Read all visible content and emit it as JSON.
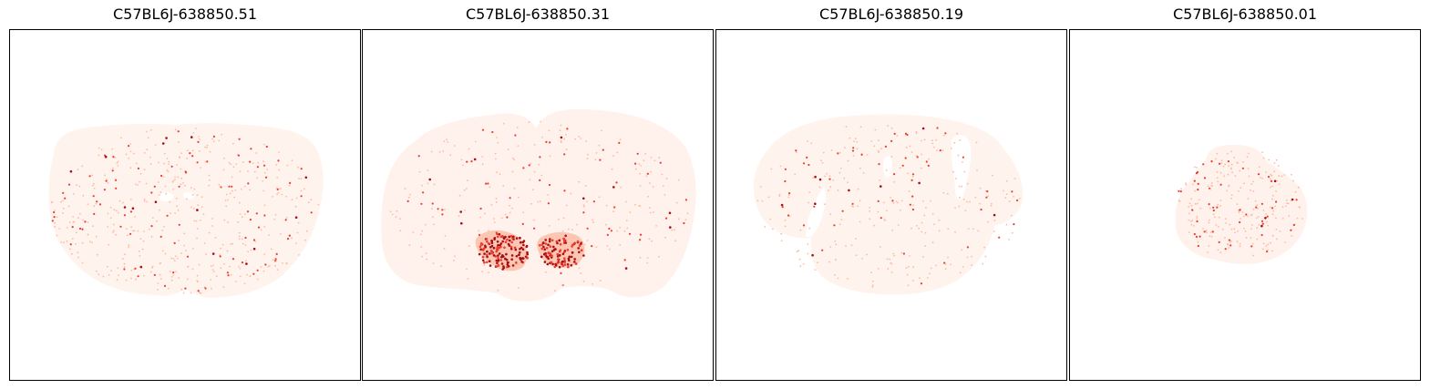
{
  "panels": [
    {
      "title": "C57BL6J-638850.51"
    },
    {
      "title": "C57BL6J-638850.31"
    },
    {
      "title": "C57BL6J-638850.19"
    },
    {
      "title": "C57BL6J-638850.01"
    }
  ],
  "colormap": {
    "name": "Reds",
    "background": "#fff5f0",
    "low": "#fcbba1",
    "mid": "#ef3b2c",
    "high": "#a50f15"
  }
}
